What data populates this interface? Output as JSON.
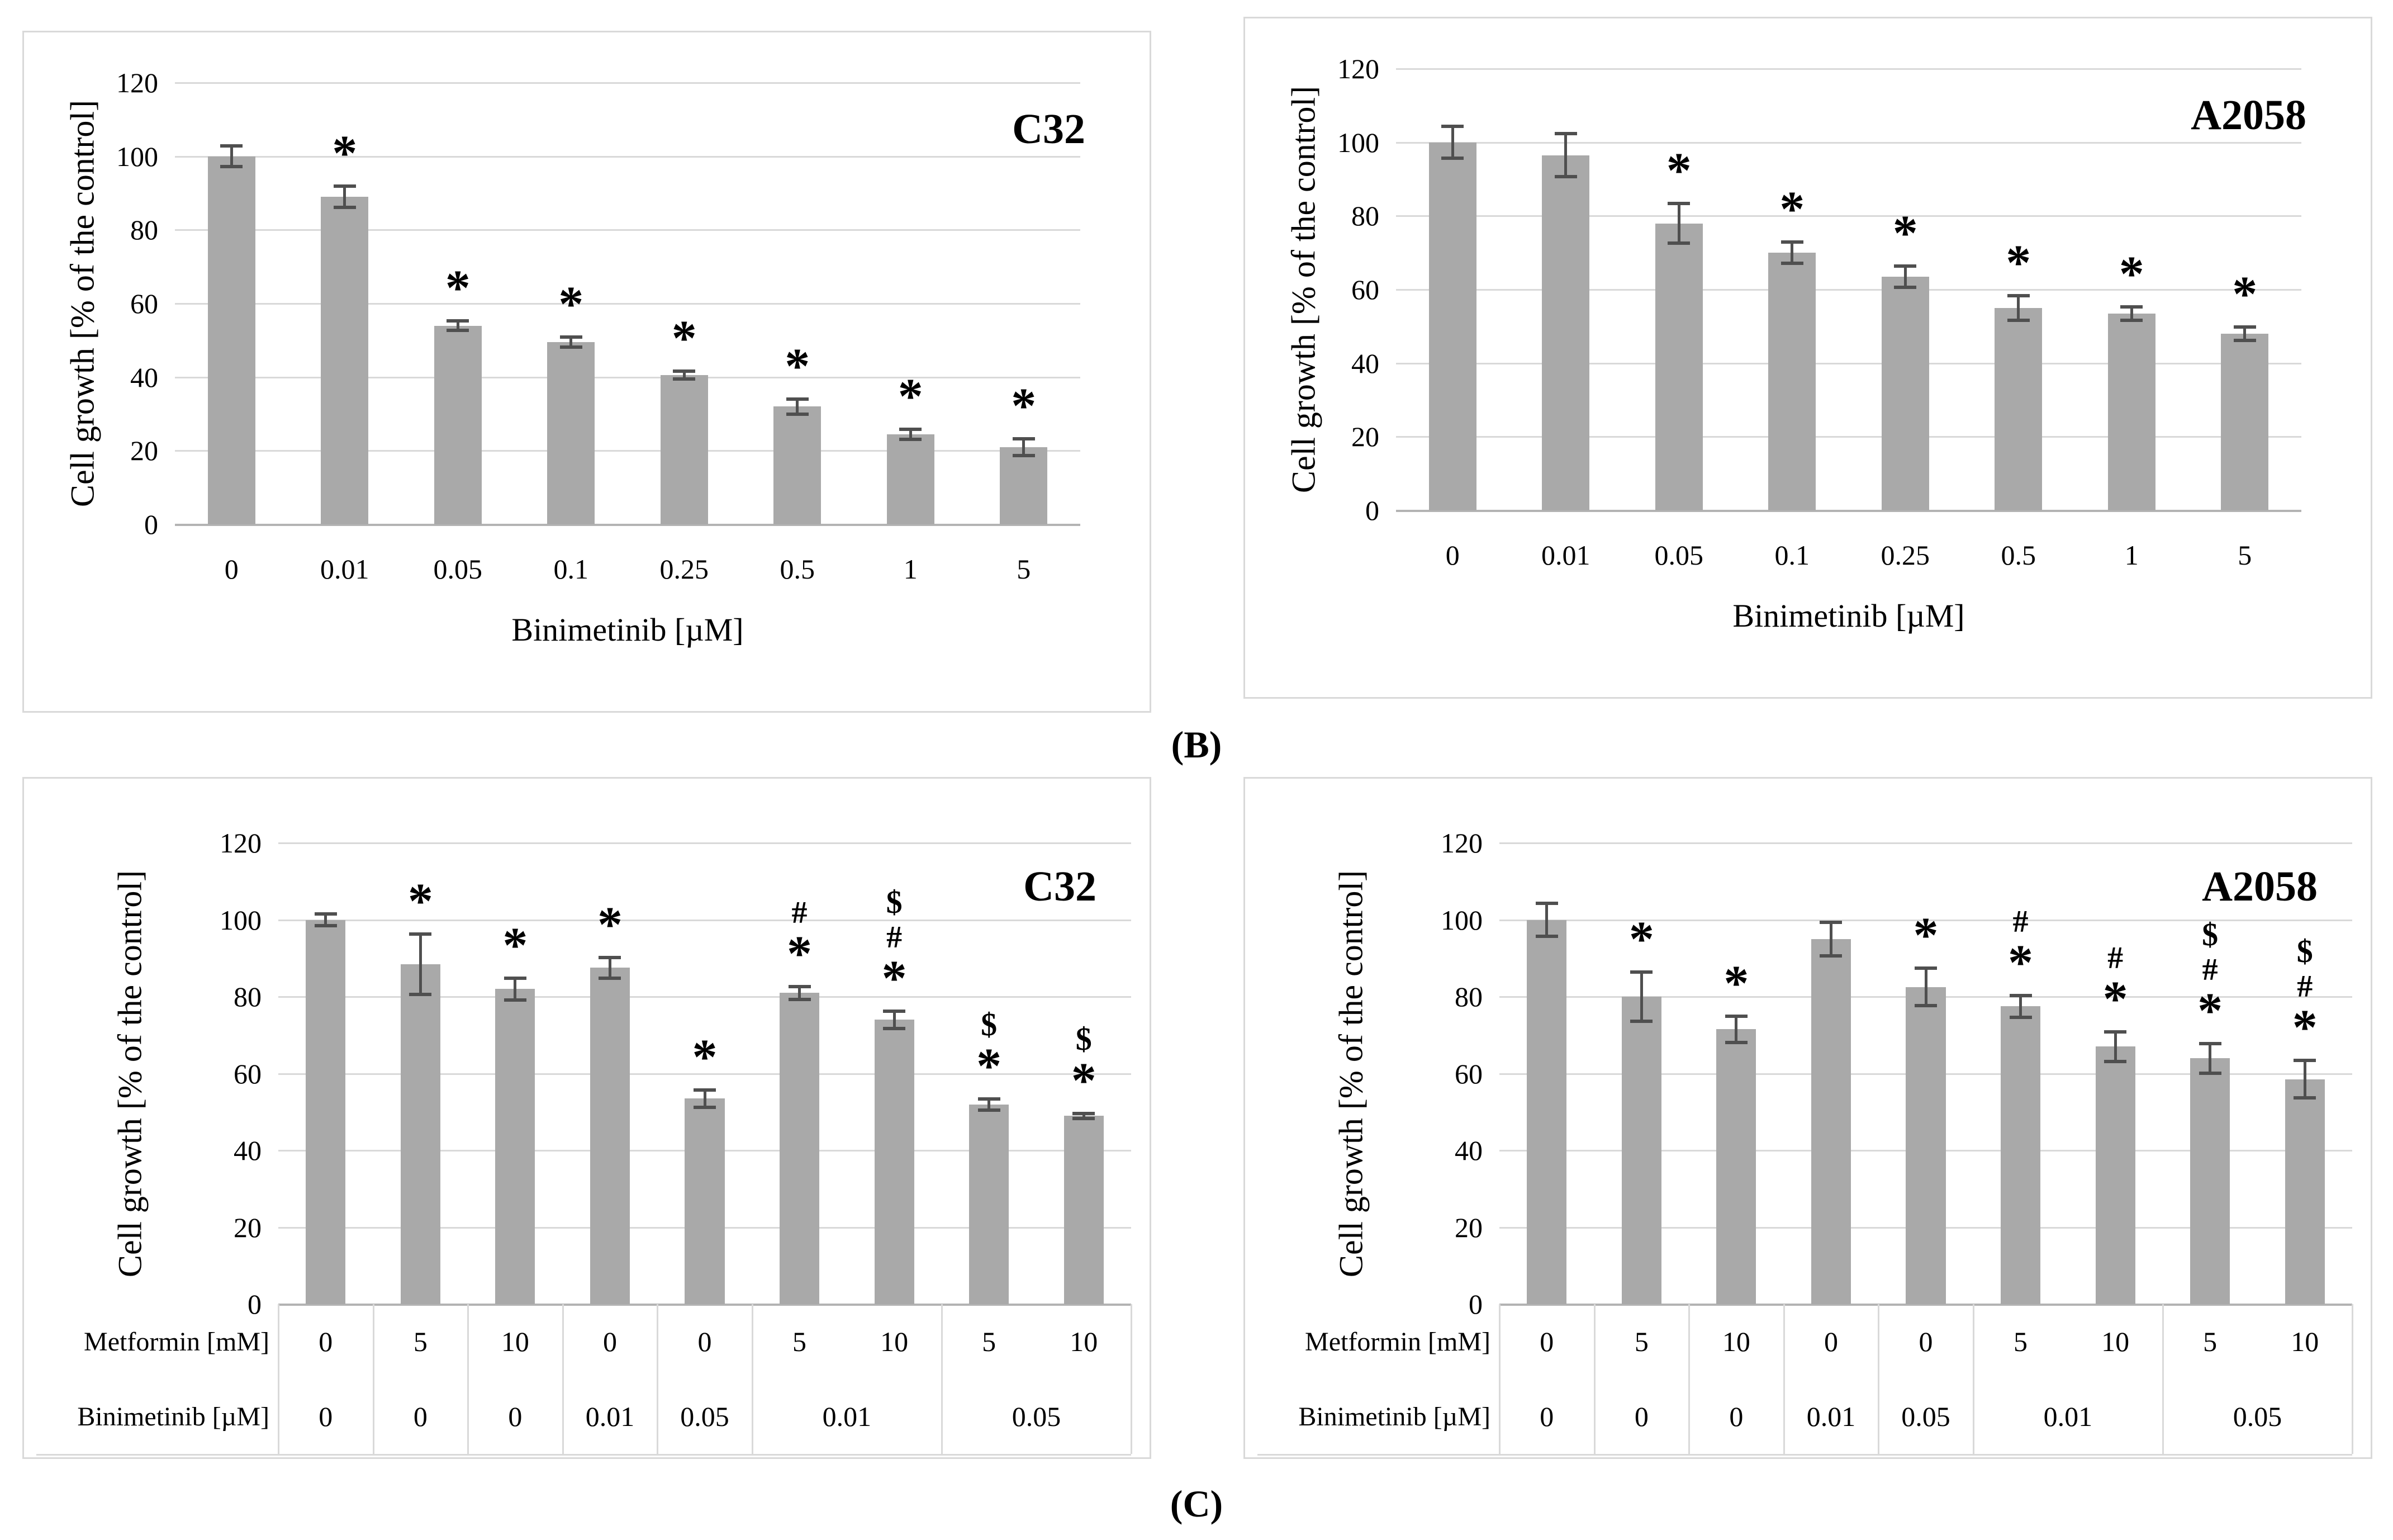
{
  "section_labels": {
    "b": "(B)",
    "c": "(C)"
  },
  "style": {
    "bar_color": "#a9a9a9",
    "error_bar_color": "#4f4f4f",
    "gridline_color": "#d9d9d9",
    "axis_line_color": "#b3b3b3",
    "panel_border_color": "#d9d9d9",
    "text_color": "#000000",
    "background": "#ffffff"
  },
  "chart_data": [
    {
      "id": "panel-b-c32",
      "type": "bar",
      "panel": "B",
      "title": "C32",
      "ylabel": "Cell growth [% of the control]",
      "xlabel": "Binimetinib [µM]",
      "ylim": [
        0,
        120
      ],
      "yticks": [
        0,
        20,
        40,
        60,
        80,
        100,
        120
      ],
      "grid": true,
      "categories": [
        "0",
        "0.01",
        "0.05",
        "0.1",
        "0.25",
        "0.5",
        "1",
        "5"
      ],
      "values": [
        100,
        89,
        54,
        49.5,
        40.5,
        32,
        24.5,
        21
      ],
      "errors": [
        3,
        3,
        1.5,
        1.5,
        1.2,
        2.2,
        1.5,
        2.4
      ],
      "annotations": [
        [],
        [
          "*"
        ],
        [
          "*"
        ],
        [
          "*"
        ],
        [
          "*"
        ],
        [
          "*"
        ],
        [
          "*"
        ],
        [
          "*"
        ]
      ]
    },
    {
      "id": "panel-b-a2058",
      "type": "bar",
      "panel": "B",
      "title": "A2058",
      "ylabel": "Cell growth [% of the control]",
      "xlabel": "Binimetinib [µM]",
      "ylim": [
        0,
        120
      ],
      "yticks": [
        0,
        20,
        40,
        60,
        80,
        100,
        120
      ],
      "grid": true,
      "categories": [
        "0",
        "0.01",
        "0.05",
        "0.1",
        "0.25",
        "0.5",
        "1",
        "5"
      ],
      "values": [
        100,
        96.5,
        78,
        70,
        63.5,
        55,
        53.5,
        48
      ],
      "errors": [
        4.5,
        6,
        5.5,
        3,
        3,
        3.5,
        2,
        2
      ],
      "annotations": [
        [],
        [],
        [
          "*"
        ],
        [
          "*"
        ],
        [
          "*"
        ],
        [
          "*"
        ],
        [
          "*"
        ],
        [
          "*"
        ]
      ]
    },
    {
      "id": "panel-c-c32",
      "type": "bar",
      "panel": "C",
      "title": "C32",
      "ylabel": "Cell growth [% of the control]",
      "ylim": [
        0,
        120
      ],
      "yticks": [
        0,
        20,
        40,
        60,
        80,
        100,
        120
      ],
      "grid": true,
      "values": [
        100,
        88.5,
        82,
        87.5,
        53.5,
        81,
        74,
        52,
        49
      ],
      "errors": [
        1.7,
        8,
        3,
        2.9,
        2.4,
        1.8,
        2.4,
        1.6,
        0.8
      ],
      "annotations": [
        [],
        [
          "*"
        ],
        [
          "*"
        ],
        [
          "*"
        ],
        [
          "*"
        ],
        [
          "*",
          "#"
        ],
        [
          "*",
          "#",
          "$"
        ],
        [
          "*",
          "$"
        ],
        [
          "*",
          "$"
        ]
      ],
      "table": {
        "row_labels": [
          "Metformin [mM]",
          "Binimetinib [µM]"
        ],
        "rows": [
          [
            {
              "text": "0"
            },
            {
              "text": "5"
            },
            {
              "text": "10"
            },
            {
              "text": "0"
            },
            {
              "text": "0"
            },
            {
              "text": "5"
            },
            {
              "text": "10"
            },
            {
              "text": "5"
            },
            {
              "text": "10"
            }
          ],
          [
            {
              "text": "0"
            },
            {
              "text": "0"
            },
            {
              "text": "0"
            },
            {
              "text": "0.01"
            },
            {
              "text": "0.05"
            },
            {
              "text": "0.01",
              "span": 2
            },
            {
              "text": "0.05",
              "span": 2
            }
          ]
        ],
        "dividers": [
          0,
          1,
          2,
          3,
          4,
          5,
          7,
          9
        ]
      }
    },
    {
      "id": "panel-c-a2058",
      "type": "bar",
      "panel": "C",
      "title": "A2058",
      "ylabel": "Cell growth [% of the control]",
      "ylim": [
        0,
        120
      ],
      "yticks": [
        0,
        20,
        40,
        60,
        80,
        100,
        120
      ],
      "grid": true,
      "values": [
        100,
        80,
        71.5,
        95,
        82.5,
        77.5,
        67,
        64,
        58.5
      ],
      "errors": [
        4.5,
        6.5,
        3.5,
        4.5,
        5,
        3,
        4,
        4,
        5
      ],
      "annotations": [
        [],
        [
          "*"
        ],
        [
          "*"
        ],
        [],
        [
          "*"
        ],
        [
          "*",
          "#"
        ],
        [
          "*",
          "#"
        ],
        [
          "*",
          "#",
          "$"
        ],
        [
          "*",
          "#",
          "$"
        ]
      ],
      "table": {
        "row_labels": [
          "Metformin [mM]",
          "Binimetinib [µM]"
        ],
        "rows": [
          [
            {
              "text": "0"
            },
            {
              "text": "5"
            },
            {
              "text": "10"
            },
            {
              "text": "0"
            },
            {
              "text": "0"
            },
            {
              "text": "5"
            },
            {
              "text": "10"
            },
            {
              "text": "5"
            },
            {
              "text": "10"
            }
          ],
          [
            {
              "text": "0"
            },
            {
              "text": "0"
            },
            {
              "text": "0"
            },
            {
              "text": "0.01"
            },
            {
              "text": "0.05"
            },
            {
              "text": "0.01",
              "span": 2
            },
            {
              "text": "0.05",
              "span": 2
            }
          ]
        ],
        "dividers": [
          0,
          1,
          2,
          3,
          4,
          5,
          7,
          9
        ]
      }
    }
  ]
}
